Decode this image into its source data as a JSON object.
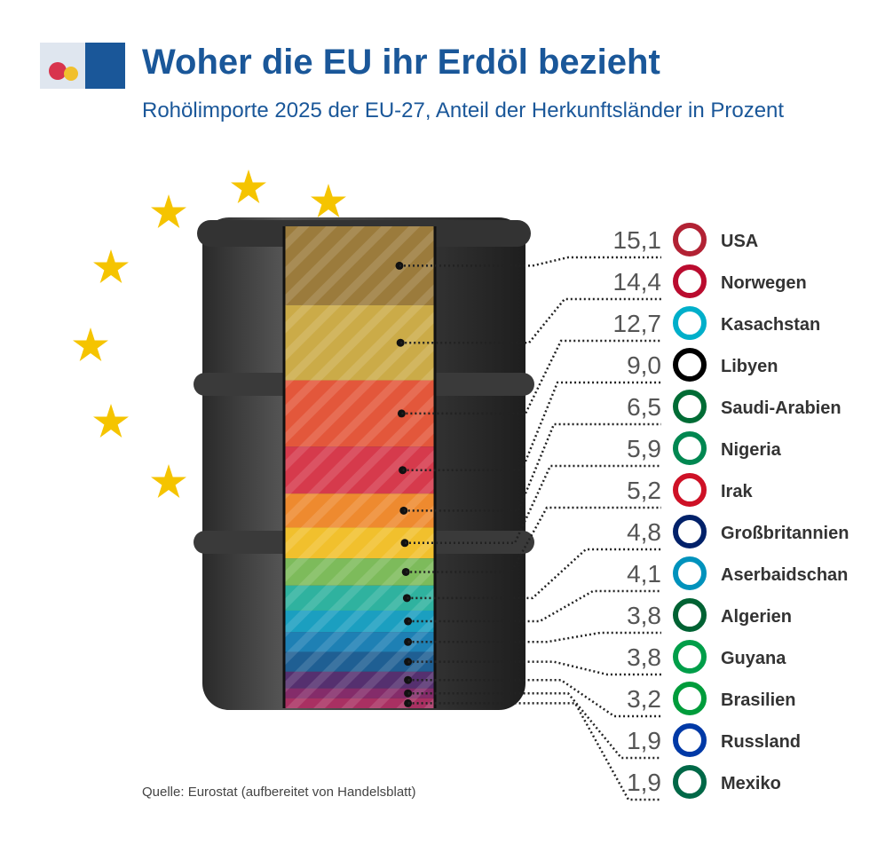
{
  "chart_data": {
    "type": "barrel",
    "title": "Woher die EU ihr Erdöl bezieht",
    "subtitle": "Rohölimporte 2025 der EU-27, Anteil der Herkunftsländer in Prozent",
    "source": "Quelle: Eurostat (aufbereitet von Handelsblatt)",
    "categories": [
      "USA",
      "Norwegen",
      "Kasachstan",
      "Libyen",
      "Saudi-Arabien",
      "Nigeria",
      "Irak",
      "Großbritannien",
      "Aserbaidschan",
      "Algerien",
      "Guyana",
      "Brasilien",
      "Russland",
      "Mexiko"
    ],
    "values": [
      15.1,
      14.4,
      12.7,
      9.0,
      6.5,
      5.9,
      5.2,
      4.8,
      4.1,
      3.8,
      3.8,
      3.2,
      1.9,
      1.9
    ],
    "value_labels": [
      "15,1",
      "14,4",
      "12,7",
      "9,0",
      "6,5",
      "5,9",
      "5,2",
      "4,8",
      "4,1",
      "3,8",
      "3,8",
      "3,2",
      "1,9",
      "1,9"
    ],
    "colors": [
      "#9b7b3c",
      "#cbab48",
      "#e3573b",
      "#d63a4c",
      "#ee8a2f",
      "#f1c02d",
      "#7dbb5b",
      "#2fb29f",
      "#1b9fc0",
      "#1e80b4",
      "#1f5f93",
      "#55306f",
      "#842c6a",
      "#a93062"
    ]
  }
}
